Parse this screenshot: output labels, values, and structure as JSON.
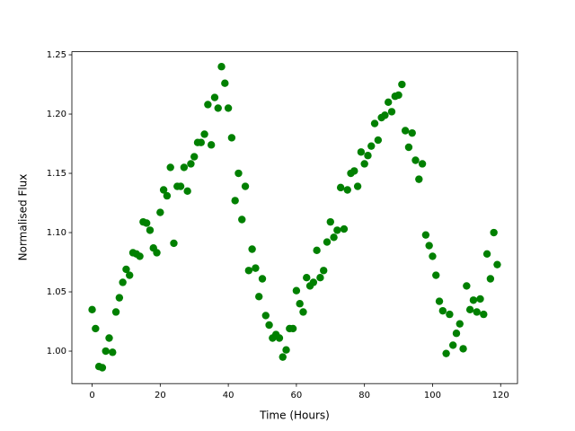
{
  "chart_data": {
    "type": "scatter",
    "xlabel": "Time (Hours)",
    "ylabel": "Normalised Flux",
    "x": [
      0,
      1,
      2,
      3,
      4,
      5,
      6,
      7,
      8,
      9,
      10,
      11,
      12,
      13,
      14,
      15,
      16,
      17,
      18,
      19,
      20,
      21,
      22,
      23,
      24,
      25,
      26,
      27,
      28,
      29,
      30,
      31,
      32,
      33,
      34,
      35,
      36,
      37,
      38,
      39,
      40,
      41,
      42,
      43,
      44,
      45,
      46,
      47,
      48,
      49,
      50,
      51,
      52,
      53,
      54,
      55,
      56,
      57,
      58,
      59,
      60,
      61,
      62,
      63,
      64,
      65,
      66,
      67,
      68,
      69,
      70,
      71,
      72,
      73,
      74,
      75,
      76,
      77,
      78,
      79,
      80,
      81,
      82,
      83,
      84,
      85,
      86,
      87,
      88,
      89,
      90,
      91,
      92,
      93,
      94,
      95,
      96,
      97,
      98,
      99,
      100,
      101,
      102,
      103,
      104,
      105,
      106,
      107,
      108,
      109,
      110,
      111,
      112,
      113,
      114,
      115,
      116,
      117,
      118,
      119
    ],
    "series": [
      {
        "color": "#008000",
        "values": [
          1.035,
          1.019,
          0.987,
          0.986,
          1.0,
          1.011,
          0.999,
          1.033,
          1.045,
          1.058,
          1.069,
          1.064,
          1.083,
          1.082,
          1.08,
          1.109,
          1.108,
          1.102,
          1.087,
          1.083,
          1.117,
          1.136,
          1.131,
          1.155,
          1.091,
          1.139,
          1.139,
          1.155,
          1.135,
          1.158,
          1.164,
          1.176,
          1.176,
          1.183,
          1.208,
          1.174,
          1.214,
          1.205,
          1.24,
          1.226,
          1.205,
          1.18,
          1.127,
          1.15,
          1.111,
          1.139,
          1.068,
          1.086,
          1.07,
          1.046,
          1.061,
          1.03,
          1.022,
          1.011,
          1.014,
          1.011,
          0.995,
          1.001,
          1.019,
          1.019,
          1.051,
          1.04,
          1.033,
          1.062,
          1.055,
          1.058,
          1.085,
          1.062,
          1.068,
          1.092,
          1.109,
          1.096,
          1.102,
          1.138,
          1.103,
          1.136,
          1.15,
          1.152,
          1.139,
          1.168,
          1.158,
          1.165,
          1.173,
          1.192,
          1.178,
          1.197,
          1.199,
          1.21,
          1.202,
          1.215,
          1.216,
          1.225,
          1.186,
          1.172,
          1.184,
          1.161,
          1.145,
          1.158,
          1.098,
          1.089,
          1.08,
          1.064,
          1.042,
          1.034,
          0.998,
          1.031,
          1.005,
          1.015,
          1.023,
          1.002,
          1.055,
          1.035,
          1.043,
          1.033,
          1.044,
          1.031,
          1.082,
          1.061,
          1.1,
          1.073
        ]
      }
    ],
    "xlim": [
      -5.95,
      124.95
    ],
    "ylim": [
      0.9726,
      1.2526
    ],
    "xticks": [
      0,
      20,
      40,
      60,
      80,
      100,
      120
    ],
    "yticks": [
      {
        "value": 1.0,
        "label": "1.00"
      },
      1.05,
      {
        "value": 1.1,
        "label": "1.10"
      },
      1.15,
      {
        "value": 1.2,
        "label": "1.20"
      },
      1.25
    ]
  }
}
